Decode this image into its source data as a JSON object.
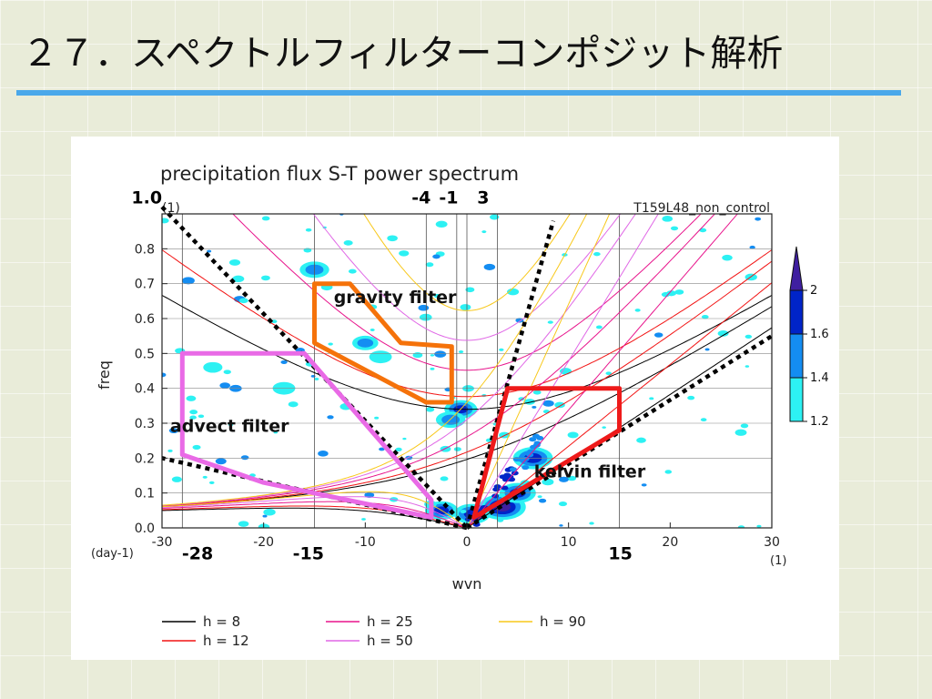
{
  "slide": {
    "title": "２７．スペクトルフィルターコンポジット解析"
  },
  "chart_data": {
    "type": "heatmap",
    "title": "precipitation flux S-T power spectrum",
    "run_label": "T159L48_non_control",
    "xlabel": "wvn",
    "ylabel": "freq",
    "x_unit_label": "(1)",
    "y_unit_label": "(day-1)",
    "y_top_unit_label": "(1)",
    "xlim": [
      -30,
      30
    ],
    "ylim": [
      0,
      0.9
    ],
    "x_ticks": [
      -30,
      -20,
      -10,
      0,
      10,
      20,
      30
    ],
    "y_ticks": [
      0.0,
      0.1,
      0.2,
      0.3,
      0.4,
      0.5,
      0.6,
      0.7,
      0.8
    ],
    "x_tick_labels": [
      "-30",
      "-20",
      "-10",
      "0",
      "10",
      "20",
      "30"
    ],
    "y_tick_labels": [
      "0.0",
      "0.1",
      "0.2",
      "0.3",
      "0.4",
      "0.5",
      "0.6",
      "0.7",
      "0.8"
    ],
    "vertical_reference_lines": [
      -28,
      -15,
      -4,
      -1,
      3,
      15
    ],
    "grid": true,
    "annotations": [
      {
        "text": "1.0",
        "x": -31.5,
        "y": 0.93
      },
      {
        "text": "-4",
        "x": -4.5,
        "y": 0.93
      },
      {
        "text": "-1",
        "x": -1.8,
        "y": 0.93
      },
      {
        "text": "3",
        "x": 1.6,
        "y": 0.93
      },
      {
        "text": "-28",
        "x": -26.5,
        "y": -0.09
      },
      {
        "text": "-15",
        "x": -15.6,
        "y": -0.09
      },
      {
        "text": "15",
        "x": 15.1,
        "y": -0.09
      }
    ],
    "colorbar": {
      "levels": [
        1.2,
        1.4,
        1.6,
        2
      ],
      "labels": [
        "1.2",
        "1.4",
        "1.6",
        "2"
      ],
      "colors": [
        "#2df1f3",
        "#148df2",
        "#0024c8",
        "#3f1fa0"
      ],
      "placement": "right"
    },
    "dispersion_curves": [
      {
        "name": "h =  8",
        "h": 8,
        "color": "#000000"
      },
      {
        "name": "h = 12",
        "h": 12,
        "color": "#f21313"
      },
      {
        "name": "h = 25",
        "h": 25,
        "color": "#e8148c"
      },
      {
        "name": "h = 50",
        "h": 50,
        "color": "#e067e6"
      },
      {
        "name": "h = 90",
        "h": 90,
        "color": "#f8c81a"
      }
    ],
    "dashed_lines": [
      {
        "from": [
          -30,
          0.92
        ],
        "to": [
          0,
          0
        ]
      },
      {
        "from": [
          0,
          0
        ],
        "to": [
          -30,
          0.2
        ]
      },
      {
        "from": [
          0,
          0
        ],
        "to": [
          8.5,
          0.88
        ]
      },
      {
        "from": [
          0,
          0
        ],
        "to": [
          30,
          0.55
        ]
      }
    ],
    "filters": [
      {
        "name": "gravity filter",
        "label": "gravity filter",
        "color": "#f5720a",
        "label_at": [
          -13.1,
          0.645
        ],
        "polygon": [
          [
            -15,
            0.7
          ],
          [
            -11.5,
            0.7
          ],
          [
            -6.5,
            0.53
          ],
          [
            -1.5,
            0.52
          ],
          [
            -1.5,
            0.36
          ],
          [
            -4,
            0.36
          ],
          [
            -15,
            0.53
          ]
        ]
      },
      {
        "name": "advect filter",
        "label": "advect filter",
        "color": "#e96ae6",
        "label_at": [
          -29.2,
          0.275
        ],
        "polygon": [
          [
            -28,
            0.5
          ],
          [
            -16,
            0.5
          ],
          [
            -3.5,
            0.08
          ],
          [
            -3.5,
            0.03
          ],
          [
            -20,
            0.13
          ],
          [
            -28,
            0.21
          ]
        ]
      },
      {
        "name": "kelvin filter",
        "label": "kelvin filter",
        "color": "#ee1a1a",
        "label_at": [
          6.6,
          0.145
        ],
        "polygon": [
          [
            4,
            0.4
          ],
          [
            15,
            0.4
          ],
          [
            15,
            0.28
          ],
          [
            0.7,
            0.03
          ]
        ]
      }
    ],
    "spectral_peaks": [
      {
        "x": 3.5,
        "y": 0.06,
        "value": 2.0
      },
      {
        "x": 6.5,
        "y": 0.2,
        "value": 1.8
      },
      {
        "x": 5,
        "y": 0.1,
        "value": 1.7
      },
      {
        "x": 0.5,
        "y": 0.04,
        "value": 1.7
      },
      {
        "x": -2.5,
        "y": 0.05,
        "value": 1.6
      },
      {
        "x": -0.6,
        "y": 0.34,
        "value": 1.6
      },
      {
        "x": -1.6,
        "y": 0.31,
        "value": 1.5
      },
      {
        "x": -15,
        "y": 0.74,
        "value": 1.5
      },
      {
        "x": -10,
        "y": 0.53,
        "value": 1.4
      },
      {
        "x": -8.5,
        "y": 0.49,
        "value": 1.3
      },
      {
        "x": -18,
        "y": 0.4,
        "value": 1.3
      },
      {
        "x": -25,
        "y": 0.46,
        "value": 1.2
      }
    ]
  }
}
